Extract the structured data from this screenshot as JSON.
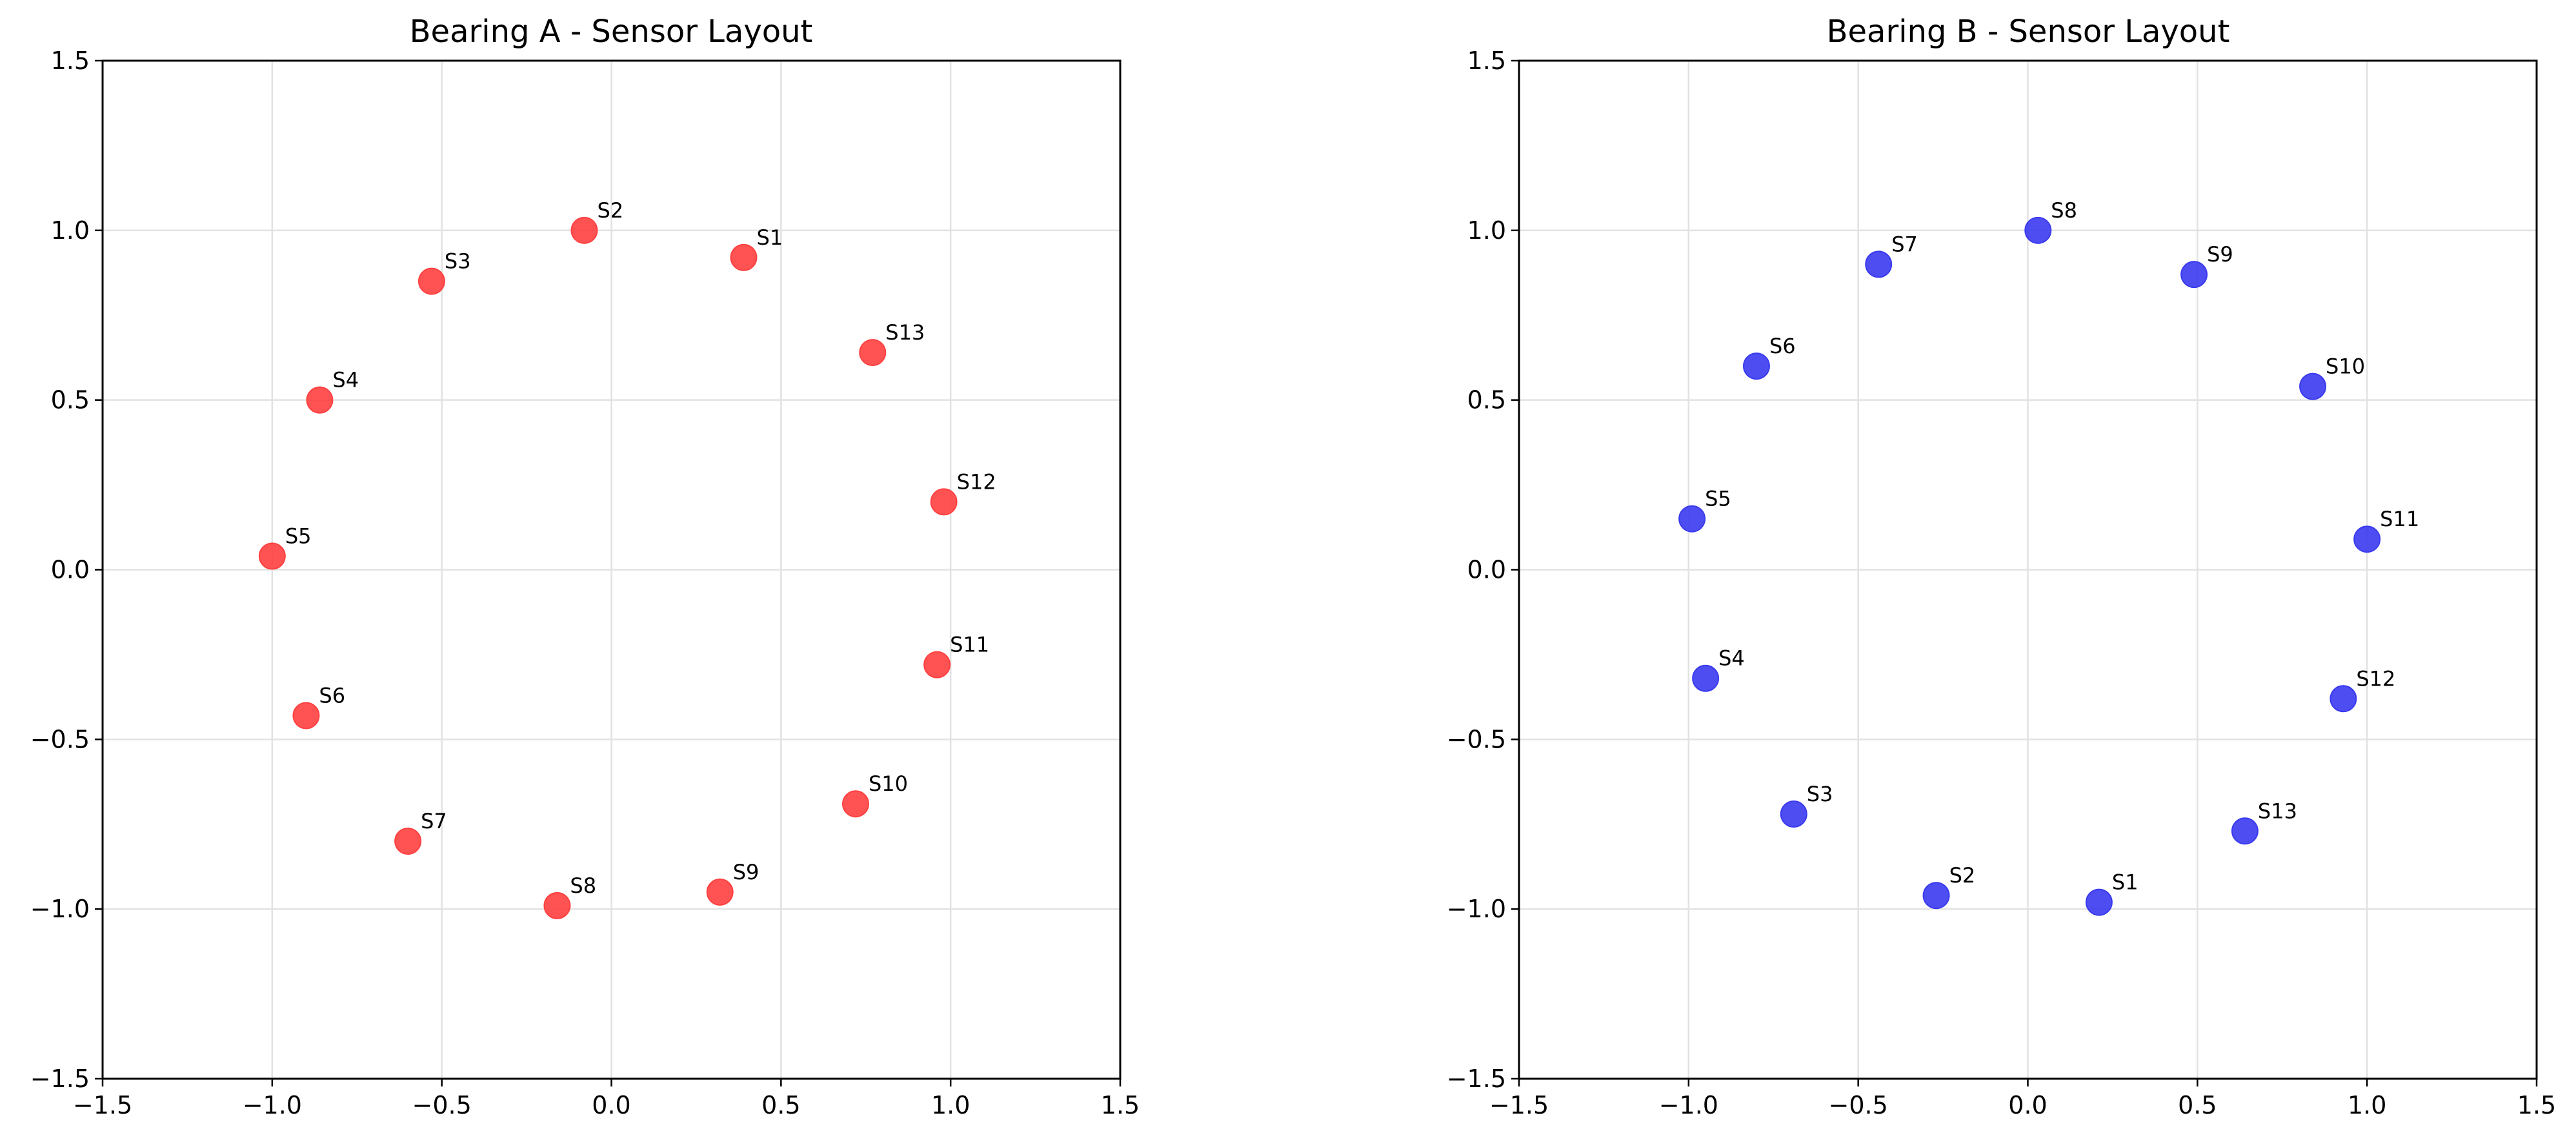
{
  "chart_data": [
    {
      "type": "scatter",
      "title": "Bearing A - Sensor Layout",
      "xlabel": "",
      "ylabel": "",
      "xlim": [
        -1.5,
        1.5
      ],
      "ylim": [
        -1.5,
        1.5
      ],
      "xticks": [
        "−1.5",
        "−1.0",
        "−0.5",
        "0.0",
        "0.5",
        "1.0",
        "1.5"
      ],
      "yticks": [
        "−1.5",
        "−1.0",
        "−0.5",
        "0.0",
        "0.5",
        "1.0",
        "1.5"
      ],
      "grid": true,
      "color": "#ff4040",
      "points": [
        {
          "label": "S1",
          "x": 0.39,
          "y": 0.92
        },
        {
          "label": "S2",
          "x": -0.08,
          "y": 1.0
        },
        {
          "label": "S3",
          "x": -0.53,
          "y": 0.85
        },
        {
          "label": "S4",
          "x": -0.86,
          "y": 0.5
        },
        {
          "label": "S5",
          "x": -1.0,
          "y": 0.04
        },
        {
          "label": "S6",
          "x": -0.9,
          "y": -0.43
        },
        {
          "label": "S7",
          "x": -0.6,
          "y": -0.8
        },
        {
          "label": "S8",
          "x": -0.16,
          "y": -0.99
        },
        {
          "label": "S9",
          "x": 0.32,
          "y": -0.95
        },
        {
          "label": "S10",
          "x": 0.72,
          "y": -0.69
        },
        {
          "label": "S11",
          "x": 0.96,
          "y": -0.28
        },
        {
          "label": "S12",
          "x": 0.98,
          "y": 0.2
        },
        {
          "label": "S13",
          "x": 0.77,
          "y": 0.64
        }
      ]
    },
    {
      "type": "scatter",
      "title": "Bearing B - Sensor Layout",
      "xlabel": "",
      "ylabel": "",
      "xlim": [
        -1.5,
        1.5
      ],
      "ylim": [
        -1.5,
        1.5
      ],
      "xticks": [
        "−1.5",
        "−1.0",
        "−0.5",
        "0.0",
        "0.5",
        "1.0",
        "1.5"
      ],
      "yticks": [
        "−1.5",
        "−1.0",
        "−0.5",
        "0.0",
        "0.5",
        "1.0",
        "1.5"
      ],
      "grid": true,
      "color": "#3a3af0",
      "points": [
        {
          "label": "S1",
          "x": 0.21,
          "y": -0.98
        },
        {
          "label": "S2",
          "x": -0.27,
          "y": -0.96
        },
        {
          "label": "S3",
          "x": -0.69,
          "y": -0.72
        },
        {
          "label": "S4",
          "x": -0.95,
          "y": -0.32
        },
        {
          "label": "S5",
          "x": -0.99,
          "y": 0.15
        },
        {
          "label": "S6",
          "x": -0.8,
          "y": 0.6
        },
        {
          "label": "S7",
          "x": -0.44,
          "y": 0.9
        },
        {
          "label": "S8",
          "x": 0.03,
          "y": 1.0
        },
        {
          "label": "S9",
          "x": 0.49,
          "y": 0.87
        },
        {
          "label": "S10",
          "x": 0.84,
          "y": 0.54
        },
        {
          "label": "S11",
          "x": 1.0,
          "y": 0.09
        },
        {
          "label": "S12",
          "x": 0.93,
          "y": -0.38
        },
        {
          "label": "S13",
          "x": 0.64,
          "y": -0.77
        }
      ]
    }
  ]
}
